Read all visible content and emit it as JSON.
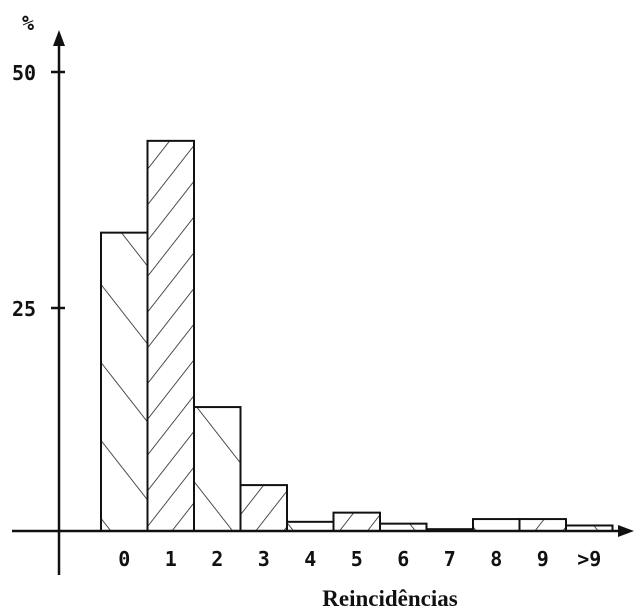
{
  "chart_data": {
    "type": "bar",
    "title": "",
    "xlabel": "Reincidências",
    "ylabel": "%",
    "categories": [
      "0",
      "1",
      "2",
      "3",
      "4",
      "5",
      "6",
      "7",
      "8",
      "9",
      ">9"
    ],
    "values": [
      32.5,
      42.5,
      13.5,
      5.0,
      1.0,
      2.0,
      0.8,
      0.2,
      1.3,
      1.3,
      0.6
    ],
    "ylim": [
      0,
      50
    ],
    "yticks": [
      "25",
      "50"
    ],
    "hatch": [
      "forward",
      "back",
      "forward",
      "back",
      "forward",
      "back",
      "forward",
      "back",
      "forward",
      "back",
      "forward"
    ],
    "grid": false
  }
}
